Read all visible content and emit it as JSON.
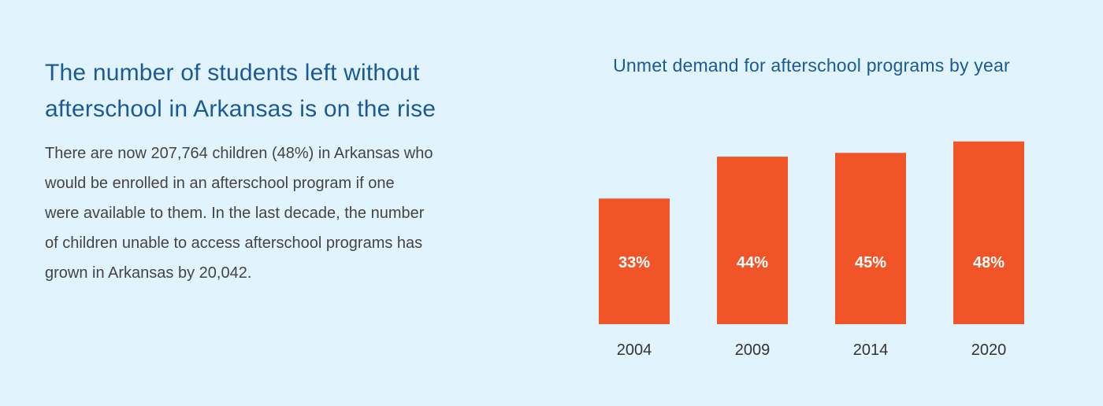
{
  "text": {
    "headline_line1": "The number of students left without",
    "headline_line2": "afterschool in Arkansas is on the rise",
    "body_lines": [
      "There are now 207,764 children (48%) in Arkansas who",
      "would be enrolled in an afterschool program if one",
      "were available to them. In the last decade, the number",
      "of children unable to access afterschool programs has",
      "grown in Arkansas by 20,042."
    ]
  },
  "colors": {
    "bar": "#f15427",
    "bar_label": "#ffffff",
    "tick_label": "#333333"
  },
  "chart_data": {
    "type": "bar",
    "title": "Unmet demand for afterschool programs by year",
    "categories": [
      "2004",
      "2009",
      "2014",
      "2020"
    ],
    "values": [
      33,
      44,
      45,
      48
    ],
    "value_labels": [
      "33%",
      "44%",
      "45%",
      "48%"
    ],
    "xlabel": "",
    "ylabel": "",
    "ylim": [
      0,
      50
    ],
    "grid": false,
    "legend": "none"
  }
}
